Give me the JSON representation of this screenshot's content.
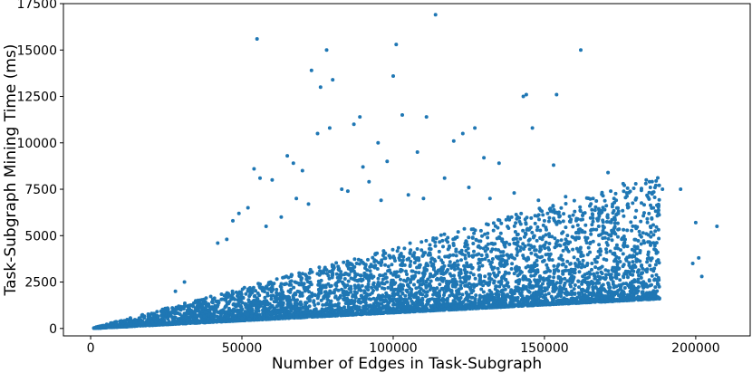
{
  "chart_data": {
    "type": "scatter",
    "title": "",
    "xlabel": "Number of Edges in Task-Subgraph",
    "ylabel": "Task-Subgraph Mining Time (ms)",
    "xlim": [
      -9000,
      218000
    ],
    "ylim": [
      -400,
      17500
    ],
    "xticks": [
      0,
      50000,
      100000,
      150000,
      200000
    ],
    "xtick_labels": [
      "0",
      "50000",
      "100000",
      "150000",
      "200000"
    ],
    "yticks": [
      0,
      2500,
      5000,
      7500,
      10000,
      12500,
      15000,
      17500
    ],
    "ytick_labels": [
      "0",
      "2500",
      "5000",
      "7500",
      "10000",
      "12500",
      "15000",
      "17500"
    ],
    "grid": false,
    "marker_color": "#1f77b4",
    "series": [
      {
        "x": [
          114000,
          55000,
          101000,
          78000,
          162000,
          76000,
          100000,
          80000,
          73000,
          144000,
          154000,
          143000,
          111000,
          103000,
          87000,
          89000,
          75000,
          79000,
          127000,
          123000,
          120000,
          146000,
          95000,
          65000,
          54000,
          56000,
          60000,
          67000,
          70000,
          90000,
          98000,
          108000,
          130000,
          135000,
          153000,
          171000,
          185000,
          189000,
          195000,
          200000,
          201000,
          207000,
          199000,
          202000,
          176000,
          173000,
          178000,
          181000,
          47000,
          49000,
          52000,
          58000,
          31000,
          28000,
          42000,
          45000,
          85000,
          92000,
          105000,
          117000,
          125000,
          132000,
          140000,
          148000,
          157000,
          165000,
          168000,
          72000,
          83000,
          96000,
          110000,
          138000,
          150000,
          160000,
          63000,
          68000
        ],
        "y": [
          16900,
          15600,
          15300,
          15000,
          15000,
          13000,
          13600,
          13400,
          13900,
          12600,
          12600,
          12500,
          11400,
          11500,
          11000,
          11400,
          10500,
          10800,
          10800,
          10500,
          10100,
          10800,
          10000,
          9300,
          8600,
          8100,
          8000,
          8900,
          8500,
          8700,
          9000,
          9500,
          9200,
          8900,
          8800,
          8400,
          7600,
          7500,
          7500,
          5700,
          3800,
          5500,
          3500,
          2800,
          7800,
          7000,
          3400,
          3100,
          5800,
          6200,
          6500,
          5500,
          2500,
          2000,
          4600,
          4800,
          7400,
          7900,
          7200,
          8100,
          7600,
          7000,
          7300,
          6900,
          7100,
          6600,
          6200,
          6700,
          7500,
          6900,
          7000,
          6000,
          5800,
          6300,
          6000,
          7000
        ]
      }
    ],
    "dense_cloud_model": {
      "count": 5200,
      "x_range": [
        1000,
        188000
      ],
      "baseline_ms_per_edge": 0.0085,
      "spread_ms_per_edge": 0.022
    }
  }
}
